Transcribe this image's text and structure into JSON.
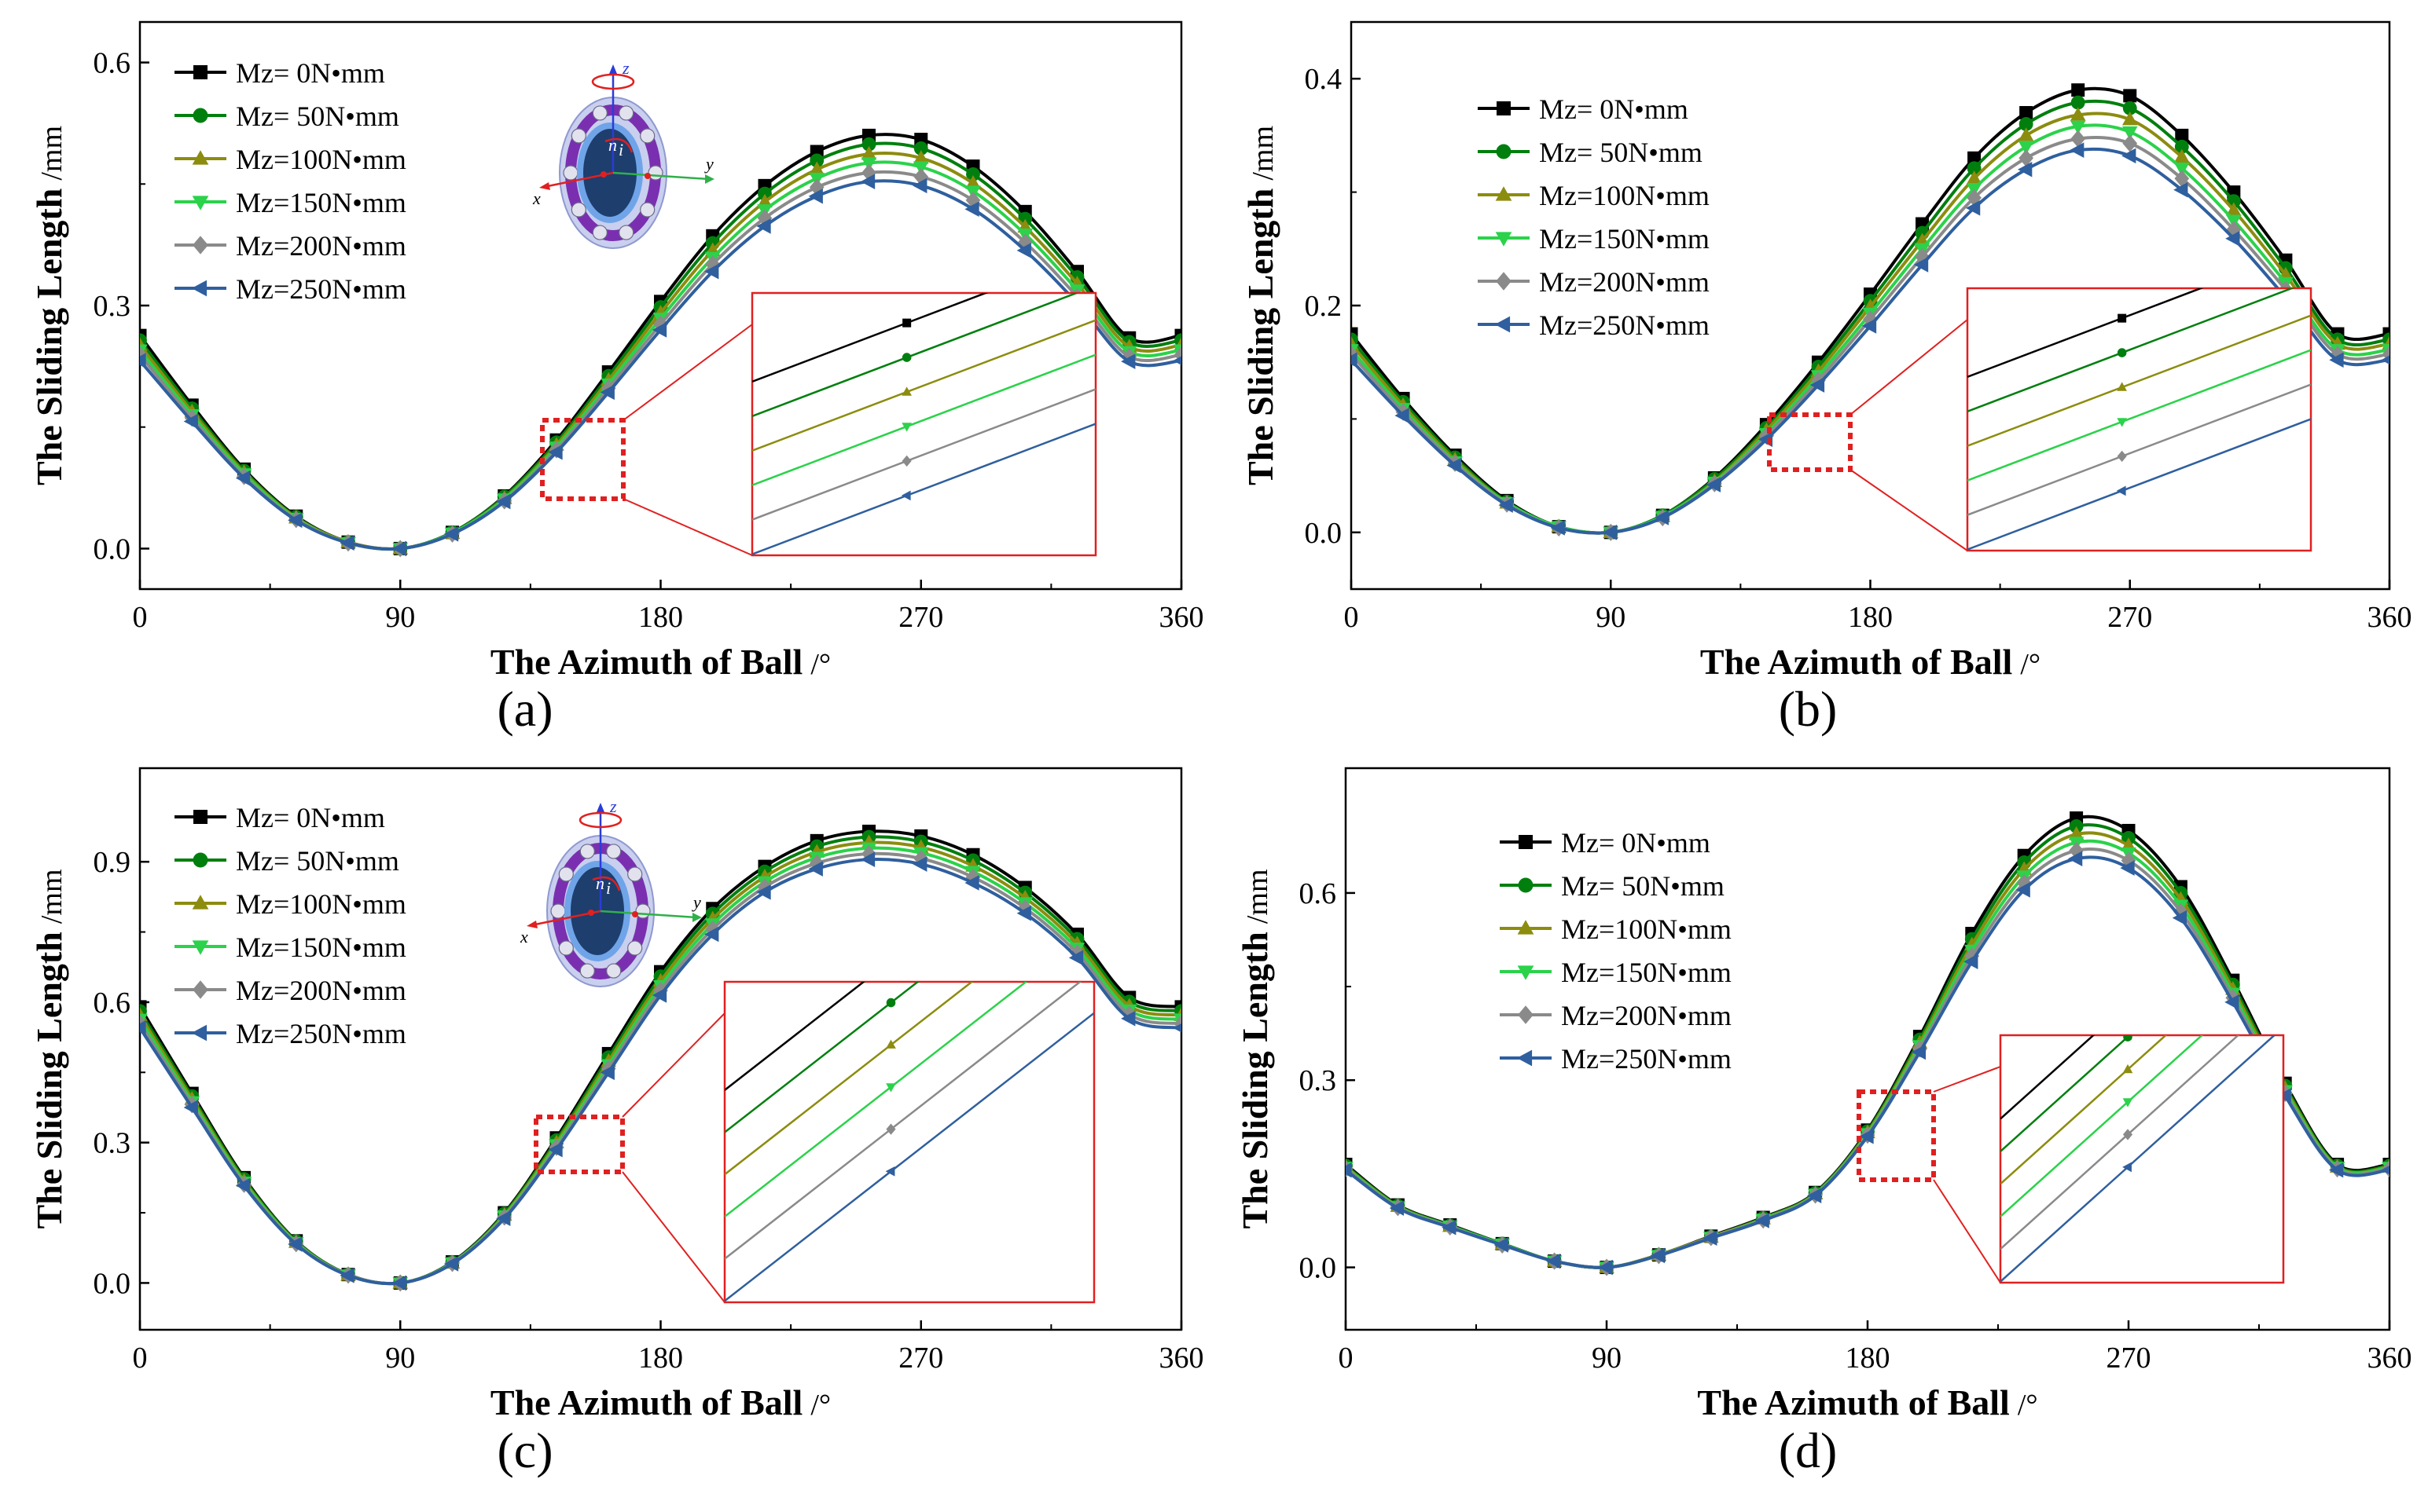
{
  "figure": {
    "xlabel": "The Azimuth of Ball",
    "xunit": "/°",
    "ylabel": "The Sliding Length",
    "yunit": "/mm"
  },
  "legend": {
    "labels": [
      "Mz=    0N•mm",
      "Mz=  50N•mm",
      "Mz=100N•mm",
      "Mz=150N•mm",
      "Mz=200N•mm",
      "Mz=250N•mm"
    ],
    "colors": [
      "#000000",
      "#007f0e",
      "#8c8c0f",
      "#2bd24a",
      "#8a8a8a",
      "#2f5f9e"
    ],
    "markers": [
      "square",
      "circle",
      "triangle-up",
      "triangle-down",
      "diamond",
      "triangle-left"
    ]
  },
  "bearing_icon": {
    "axis_x": "x",
    "axis_y": "y",
    "axis_z": "z",
    "speed": "n",
    "speed_sub": "i"
  },
  "chart_data": [
    {
      "type": "line",
      "panel": "(a)",
      "xlabel": "The Azimuth of Ball /°",
      "ylabel": "The Sliding Length /mm",
      "xlim": [
        0,
        360
      ],
      "ylim": [
        -0.05,
        0.65
      ],
      "xticks": [
        0,
        90,
        180,
        270,
        360
      ],
      "yticks": [
        0.0,
        0.3,
        0.6
      ],
      "ytick_labels": [
        "0.0",
        "0.3",
        "0.6"
      ],
      "x": [
        0,
        18,
        36,
        54,
        72,
        90,
        108,
        126,
        144,
        162,
        180,
        198,
        216,
        234,
        252,
        270,
        288,
        306,
        324,
        342,
        360
      ],
      "series": [
        {
          "name": "Mz=0N•mm",
          "values": [
            0.263,
            0.177,
            0.098,
            0.04,
            0.008,
            0.0,
            0.02,
            0.065,
            0.134,
            0.218,
            0.305,
            0.386,
            0.448,
            0.49,
            0.51,
            0.505,
            0.472,
            0.416,
            0.342,
            0.26,
            0.263
          ]
        },
        {
          "name": "Mz=50N•mm",
          "values": [
            0.257,
            0.173,
            0.096,
            0.039,
            0.008,
            0.0,
            0.02,
            0.064,
            0.131,
            0.213,
            0.298,
            0.377,
            0.438,
            0.479,
            0.499,
            0.494,
            0.462,
            0.407,
            0.335,
            0.255,
            0.257
          ]
        },
        {
          "name": "Mz=100N•mm",
          "values": [
            0.251,
            0.169,
            0.094,
            0.038,
            0.008,
            0.0,
            0.019,
            0.062,
            0.128,
            0.208,
            0.291,
            0.368,
            0.428,
            0.468,
            0.487,
            0.482,
            0.451,
            0.397,
            0.327,
            0.249,
            0.251
          ]
        },
        {
          "name": "Mz=150N•mm",
          "values": [
            0.245,
            0.165,
            0.092,
            0.037,
            0.007,
            0.0,
            0.019,
            0.061,
            0.125,
            0.203,
            0.284,
            0.359,
            0.418,
            0.457,
            0.476,
            0.471,
            0.441,
            0.388,
            0.319,
            0.243,
            0.245
          ]
        },
        {
          "name": "Mz=200N•mm",
          "values": [
            0.239,
            0.161,
            0.089,
            0.036,
            0.007,
            0.0,
            0.018,
            0.059,
            0.122,
            0.198,
            0.277,
            0.351,
            0.408,
            0.446,
            0.464,
            0.459,
            0.43,
            0.378,
            0.311,
            0.237,
            0.239
          ]
        },
        {
          "name": "Mz=250N•mm",
          "values": [
            0.232,
            0.157,
            0.087,
            0.035,
            0.007,
            0.0,
            0.018,
            0.058,
            0.119,
            0.193,
            0.27,
            0.342,
            0.398,
            0.435,
            0.453,
            0.448,
            0.419,
            0.368,
            0.303,
            0.231,
            0.232
          ]
        }
      ]
    },
    {
      "type": "line",
      "panel": "(b)",
      "xlabel": "The Azimuth of Ball /°",
      "ylabel": "The Sliding Length /mm",
      "xlim": [
        0,
        360
      ],
      "ylim": [
        -0.05,
        0.45
      ],
      "xticks": [
        0,
        90,
        180,
        270,
        360
      ],
      "yticks": [
        0.0,
        0.2,
        0.4
      ],
      "ytick_labels": [
        "0.0",
        "0.2",
        "0.4"
      ],
      "x": [
        0,
        18,
        36,
        54,
        72,
        90,
        108,
        126,
        144,
        162,
        180,
        198,
        216,
        234,
        252,
        270,
        288,
        306,
        324,
        342,
        360
      ],
      "series": [
        {
          "name": "Mz=0N•mm",
          "values": [
            0.175,
            0.118,
            0.068,
            0.028,
            0.005,
            0.0,
            0.015,
            0.048,
            0.095,
            0.15,
            0.21,
            0.272,
            0.33,
            0.37,
            0.39,
            0.385,
            0.35,
            0.3,
            0.24,
            0.175,
            0.175
          ]
        },
        {
          "name": "Mz=50N•mm",
          "values": [
            0.17,
            0.115,
            0.066,
            0.027,
            0.005,
            0.0,
            0.015,
            0.047,
            0.092,
            0.146,
            0.204,
            0.264,
            0.321,
            0.36,
            0.379,
            0.374,
            0.34,
            0.292,
            0.233,
            0.17,
            0.17
          ]
        },
        {
          "name": "Mz=100N•mm",
          "values": [
            0.166,
            0.112,
            0.064,
            0.026,
            0.005,
            0.0,
            0.014,
            0.045,
            0.09,
            0.142,
            0.199,
            0.257,
            0.312,
            0.35,
            0.368,
            0.364,
            0.331,
            0.284,
            0.227,
            0.166,
            0.166
          ]
        },
        {
          "name": "Mz=150N•mm",
          "values": [
            0.161,
            0.109,
            0.062,
            0.026,
            0.005,
            0.0,
            0.014,
            0.044,
            0.087,
            0.138,
            0.193,
            0.25,
            0.303,
            0.34,
            0.358,
            0.353,
            0.321,
            0.275,
            0.22,
            0.161,
            0.161
          ]
        },
        {
          "name": "Mz=200N•mm",
          "values": [
            0.157,
            0.106,
            0.061,
            0.025,
            0.004,
            0.0,
            0.013,
            0.043,
            0.085,
            0.134,
            0.188,
            0.243,
            0.295,
            0.33,
            0.347,
            0.343,
            0.312,
            0.267,
            0.214,
            0.157,
            0.157
          ]
        },
        {
          "name": "Mz=250N•mm",
          "values": [
            0.152,
            0.103,
            0.059,
            0.024,
            0.004,
            0.0,
            0.013,
            0.042,
            0.082,
            0.13,
            0.182,
            0.236,
            0.286,
            0.32,
            0.337,
            0.332,
            0.302,
            0.259,
            0.207,
            0.152,
            0.152
          ]
        }
      ]
    },
    {
      "type": "line",
      "panel": "(c)",
      "xlabel": "The Azimuth of Ball /°",
      "ylabel": "The Sliding Length /mm",
      "xlim": [
        0,
        360
      ],
      "ylim": [
        -0.1,
        1.1
      ],
      "xticks": [
        0,
        90,
        180,
        270,
        360
      ],
      "yticks": [
        0.0,
        0.3,
        0.6,
        0.9
      ],
      "ytick_labels": [
        "0.0",
        "0.3",
        "0.6",
        "0.9"
      ],
      "x": [
        0,
        18,
        36,
        54,
        72,
        90,
        108,
        126,
        144,
        162,
        180,
        198,
        216,
        234,
        252,
        270,
        288,
        306,
        324,
        342,
        360
      ],
      "series": [
        {
          "name": "Mz=0N•mm",
          "values": [
            0.59,
            0.405,
            0.225,
            0.09,
            0.018,
            0.0,
            0.045,
            0.15,
            0.31,
            0.49,
            0.665,
            0.8,
            0.89,
            0.945,
            0.965,
            0.955,
            0.915,
            0.845,
            0.745,
            0.61,
            0.59
          ]
        },
        {
          "name": "Mz=50N•mm",
          "values": [
            0.581,
            0.399,
            0.222,
            0.089,
            0.018,
            0.0,
            0.044,
            0.148,
            0.305,
            0.482,
            0.655,
            0.789,
            0.879,
            0.933,
            0.953,
            0.943,
            0.903,
            0.834,
            0.735,
            0.601,
            0.581
          ]
        },
        {
          "name": "Mz=100N•mm",
          "values": [
            0.572,
            0.393,
            0.218,
            0.087,
            0.017,
            0.0,
            0.043,
            0.145,
            0.3,
            0.474,
            0.645,
            0.778,
            0.868,
            0.921,
            0.941,
            0.931,
            0.891,
            0.823,
            0.725,
            0.592,
            0.572
          ]
        },
        {
          "name": "Mz=150N•mm",
          "values": [
            0.563,
            0.387,
            0.215,
            0.086,
            0.017,
            0.0,
            0.043,
            0.143,
            0.295,
            0.466,
            0.635,
            0.767,
            0.857,
            0.909,
            0.929,
            0.919,
            0.879,
            0.812,
            0.715,
            0.583,
            0.563
          ]
        },
        {
          "name": "Mz=200N•mm",
          "values": [
            0.554,
            0.381,
            0.211,
            0.084,
            0.017,
            0.0,
            0.042,
            0.141,
            0.29,
            0.458,
            0.625,
            0.756,
            0.846,
            0.897,
            0.917,
            0.907,
            0.867,
            0.801,
            0.705,
            0.574,
            0.554
          ]
        },
        {
          "name": "Mz=250N•mm",
          "values": [
            0.545,
            0.375,
            0.208,
            0.083,
            0.016,
            0.0,
            0.041,
            0.138,
            0.285,
            0.45,
            0.615,
            0.745,
            0.835,
            0.885,
            0.905,
            0.895,
            0.855,
            0.79,
            0.695,
            0.565,
            0.545
          ]
        }
      ]
    },
    {
      "type": "line",
      "panel": "(d)",
      "xlabel": "The Azimuth of Ball /°",
      "ylabel": "The Sliding Length /mm",
      "xlim": [
        0,
        360
      ],
      "ylim": [
        -0.1,
        0.8
      ],
      "xticks": [
        0,
        90,
        180,
        270,
        360
      ],
      "yticks": [
        0.0,
        0.3,
        0.6
      ],
      "ytick_labels": [
        "0.0",
        "0.3",
        "0.6"
      ],
      "x": [
        0,
        18,
        36,
        54,
        72,
        90,
        108,
        126,
        144,
        162,
        180,
        198,
        216,
        234,
        252,
        270,
        288,
        306,
        324,
        342,
        360
      ],
      "series": [
        {
          "name": "Mz=0N•mm",
          "values": [
            0.165,
            0.1,
            0.068,
            0.038,
            0.01,
            0.0,
            0.02,
            0.05,
            0.08,
            0.12,
            0.22,
            0.37,
            0.535,
            0.66,
            0.72,
            0.7,
            0.61,
            0.46,
            0.295,
            0.165,
            0.165
          ]
        },
        {
          "name": "Mz=50N•mm",
          "values": [
            0.163,
            0.099,
            0.067,
            0.038,
            0.01,
            0.0,
            0.02,
            0.049,
            0.079,
            0.119,
            0.218,
            0.365,
            0.526,
            0.649,
            0.707,
            0.688,
            0.6,
            0.453,
            0.291,
            0.163,
            0.163
          ]
        },
        {
          "name": "Mz=100N•mm",
          "values": [
            0.161,
            0.098,
            0.066,
            0.037,
            0.01,
            0.0,
            0.02,
            0.049,
            0.078,
            0.118,
            0.216,
            0.36,
            0.517,
            0.638,
            0.694,
            0.676,
            0.59,
            0.446,
            0.287,
            0.161,
            0.161
          ]
        },
        {
          "name": "Mz=150N•mm",
          "values": [
            0.16,
            0.097,
            0.066,
            0.037,
            0.01,
            0.0,
            0.019,
            0.048,
            0.077,
            0.117,
            0.214,
            0.355,
            0.508,
            0.627,
            0.681,
            0.664,
            0.58,
            0.439,
            0.283,
            0.16,
            0.16
          ]
        },
        {
          "name": "Mz=200N•mm",
          "values": [
            0.158,
            0.096,
            0.065,
            0.036,
            0.01,
            0.0,
            0.019,
            0.048,
            0.076,
            0.116,
            0.212,
            0.35,
            0.499,
            0.616,
            0.668,
            0.652,
            0.57,
            0.432,
            0.279,
            0.158,
            0.158
          ]
        },
        {
          "name": "Mz=250N•mm",
          "values": [
            0.156,
            0.095,
            0.064,
            0.036,
            0.01,
            0.0,
            0.019,
            0.047,
            0.075,
            0.115,
            0.21,
            0.345,
            0.49,
            0.605,
            0.655,
            0.64,
            0.56,
            0.425,
            0.275,
            0.156,
            0.156
          ]
        }
      ]
    }
  ]
}
